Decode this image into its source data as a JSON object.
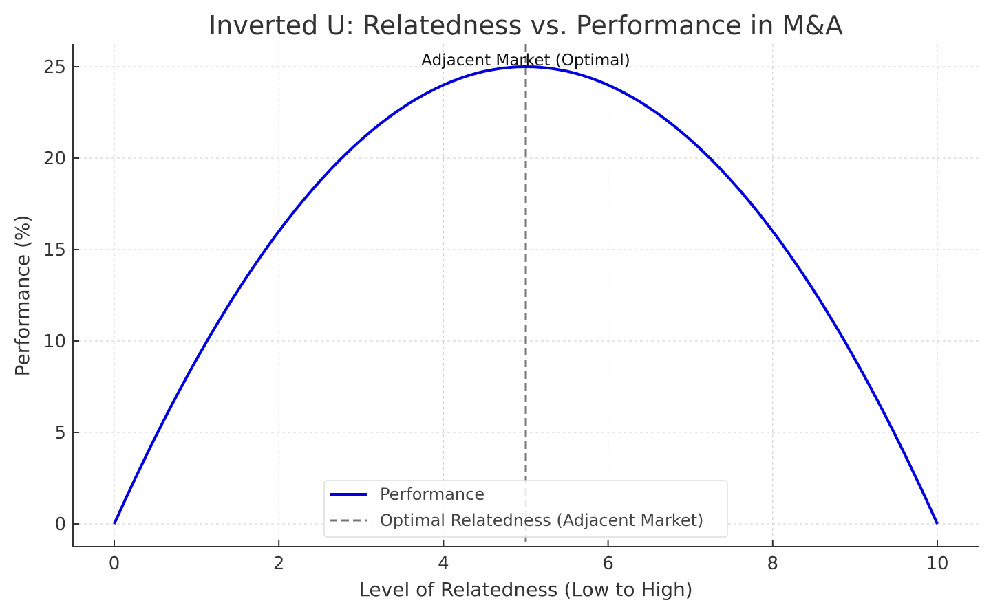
{
  "chart_data": {
    "type": "line",
    "title": "Inverted U: Relatedness vs. Performance in M&A",
    "xlabel": "Level of Relatedness (Low to High)",
    "ylabel": "Performance (%)",
    "xlim": [
      -0.5,
      10.5
    ],
    "ylim": [
      -1.25,
      26.25
    ],
    "xticks": [
      0,
      2,
      4,
      6,
      8,
      10
    ],
    "yticks": [
      0,
      5,
      10,
      15,
      20,
      25
    ],
    "grid": true,
    "series": [
      {
        "name": "Performance",
        "color": "#0000dd",
        "function": "x*(10-x)",
        "x": [
          0,
          0.5,
          1,
          1.5,
          2,
          2.5,
          3,
          3.5,
          4,
          4.5,
          5,
          5.5,
          6,
          6.5,
          7,
          7.5,
          8,
          8.5,
          9,
          9.5,
          10
        ],
        "y": [
          0,
          4.75,
          9,
          12.75,
          16,
          18.75,
          21,
          22.75,
          24,
          24.75,
          25,
          24.75,
          24,
          22.75,
          21,
          18.75,
          16,
          12.75,
          9,
          4.75,
          0
        ]
      }
    ],
    "vline": {
      "x": 5,
      "name": "Optimal Relatedness (Adjacent Market)",
      "color": "#777777",
      "style": "dashed"
    },
    "annotation": {
      "text": "Adjacent Market (Optimal)",
      "x": 5,
      "y": 25
    },
    "legend": {
      "placement": "lower-center",
      "entries": [
        "Performance",
        "Optimal Relatedness (Adjacent Market)"
      ]
    }
  }
}
